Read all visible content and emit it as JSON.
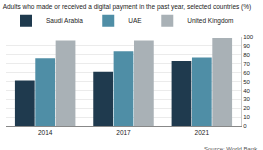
{
  "chart_data": {
    "type": "bar",
    "title": "Adults who made or received a digital payment in the past year, selected countries (%)",
    "source": "Source: World Bank",
    "categories": [
      "2014",
      "2017",
      "2021"
    ],
    "series": [
      {
        "name": "Saudi Arabia",
        "color": "#1f3a4e",
        "values": [
          51,
          61,
          73
        ]
      },
      {
        "name": "UAE",
        "color": "#4f8ea6",
        "values": [
          76,
          84,
          77
        ]
      },
      {
        "name": "United Kingdom",
        "color": "#a9b1b6",
        "values": [
          96,
          96,
          99
        ]
      }
    ],
    "ylim": [
      0,
      100
    ],
    "yticks": [
      0,
      10,
      20,
      30,
      40,
      50,
      60,
      70,
      80,
      90,
      100
    ],
    "grid": true,
    "legend": "top"
  }
}
